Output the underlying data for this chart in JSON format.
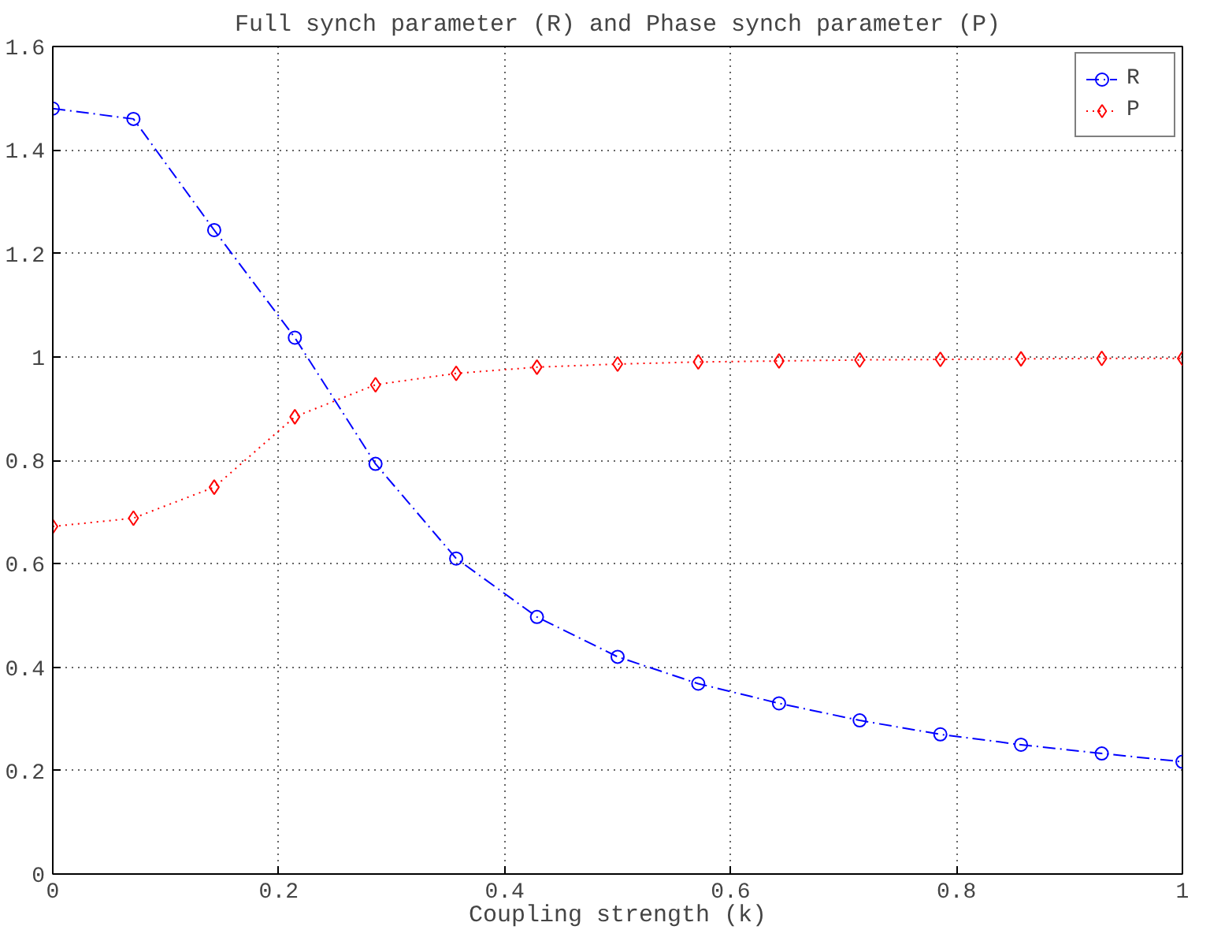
{
  "chart_data": {
    "type": "line",
    "title": "Full synch parameter (R) and Phase synch parameter (P)",
    "xlabel": "Coupling strength (k)",
    "x": [
      0,
      0.0714,
      0.1429,
      0.2143,
      0.2857,
      0.3571,
      0.4286,
      0.5,
      0.5714,
      0.6429,
      0.7143,
      0.7857,
      0.8571,
      0.9286,
      1
    ],
    "series": [
      {
        "name": "R",
        "color": "#0000ff",
        "marker": "circle",
        "line_style": "dashdot",
        "values": [
          1.48,
          1.46,
          1.245,
          1.037,
          0.793,
          0.61,
          0.497,
          0.42,
          0.368,
          0.33,
          0.297,
          0.27,
          0.25,
          0.233,
          0.217
        ]
      },
      {
        "name": "P",
        "color": "#ff0000",
        "marker": "diamond",
        "line_style": "dotted",
        "values": [
          0.672,
          0.688,
          0.748,
          0.884,
          0.946,
          0.968,
          0.98,
          0.986,
          0.99,
          0.992,
          0.994,
          0.995,
          0.996,
          0.997,
          0.997
        ]
      }
    ],
    "xlim": [
      0,
      1
    ],
    "ylim": [
      0,
      1.6
    ],
    "xticks": [
      0,
      0.2,
      0.4,
      0.6,
      0.8,
      1
    ],
    "yticks": [
      0,
      0.2,
      0.4,
      0.6,
      0.8,
      1,
      1.2,
      1.4,
      1.6
    ],
    "grid": true,
    "legend": "top right"
  }
}
